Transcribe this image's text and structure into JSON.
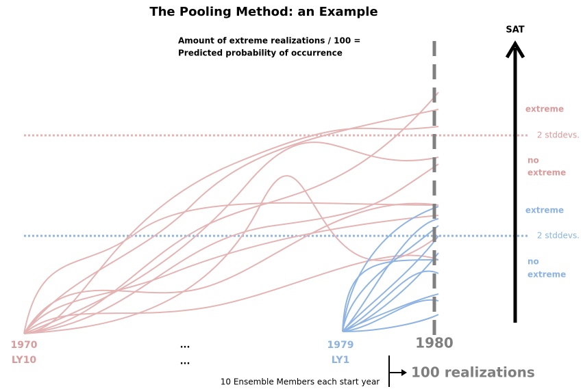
{
  "header": {
    "title": "The Pooling Method: an Example"
  },
  "note": {
    "lines": [
      "Amount of extreme realizations / 100 =",
      "Predicted probability of occurrence"
    ]
  },
  "axis_label": "SAT",
  "red_zone": {
    "upper": "extreme",
    "threshold": "2 stddevs.",
    "lower": [
      "no",
      "extreme"
    ]
  },
  "blue_zone": {
    "upper": "extreme",
    "threshold": "2 stddevs.",
    "lower": [
      "no",
      "extreme"
    ]
  },
  "start_red": {
    "year": "1970",
    "lead": "LY10"
  },
  "ellipsis": [
    "...",
    "..."
  ],
  "start_blue": {
    "year": "1979",
    "lead": "LY1"
  },
  "target_year": "1980",
  "footer": {
    "members": "10 Ensemble Members each start year",
    "result": "100 realizations"
  }
}
